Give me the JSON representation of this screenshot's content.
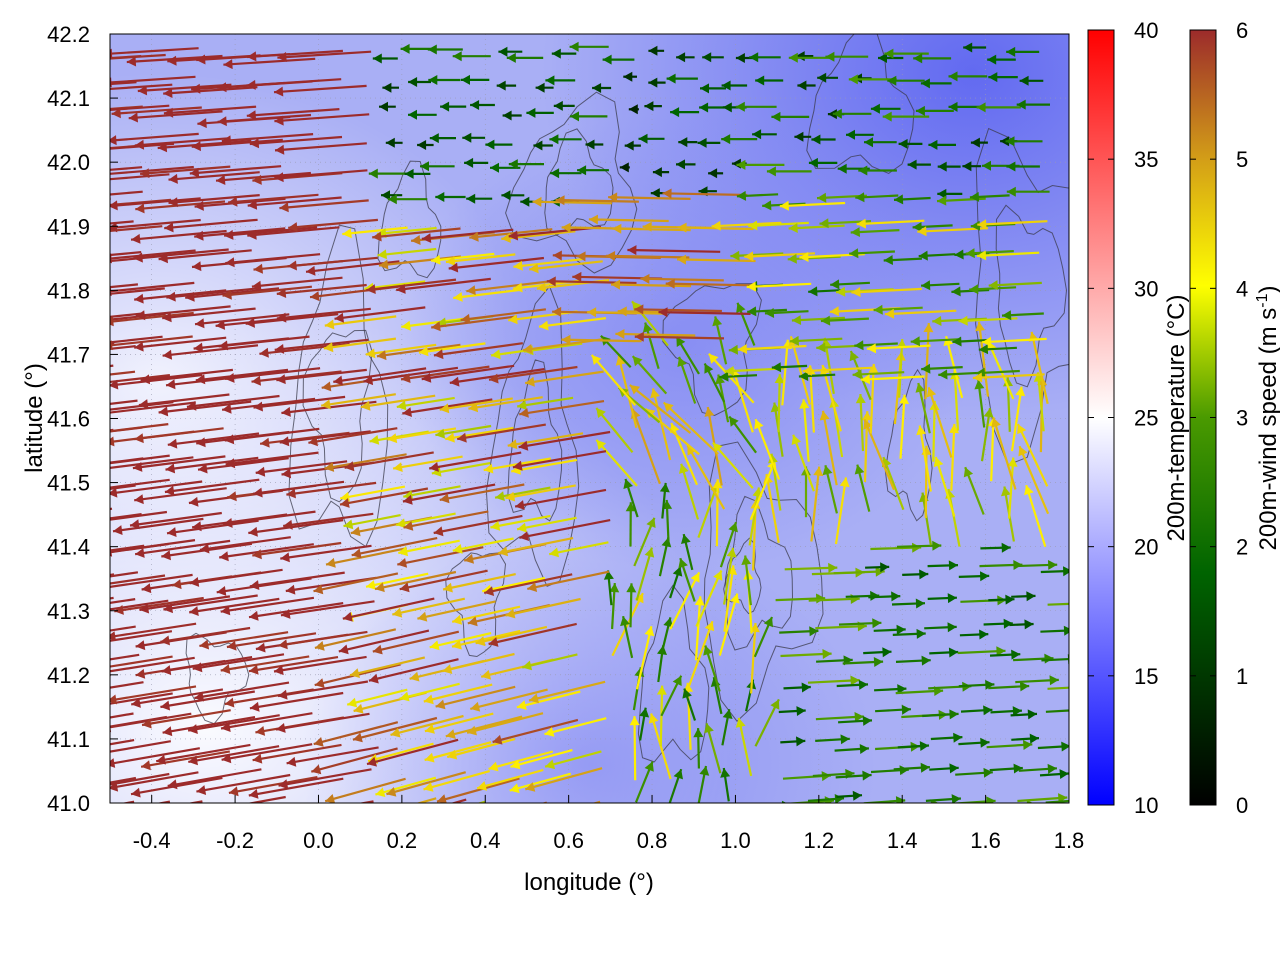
{
  "chart_data": {
    "type": "heatmap",
    "xlabel": "longitude (°)",
    "ylabel": "latitude (°)",
    "xlim": [
      -0.5,
      1.8
    ],
    "ylim": [
      41.0,
      42.2
    ],
    "xticks": [
      "-0.4",
      "-0.2",
      "0.0",
      "0.2",
      "0.4",
      "0.6",
      "0.8",
      "1.0",
      "1.2",
      "1.4",
      "1.6",
      "1.8"
    ],
    "yticks": [
      "41.0",
      "41.1",
      "41.2",
      "41.3",
      "41.4",
      "41.5",
      "41.6",
      "41.7",
      "41.8",
      "41.9",
      "42.0",
      "42.1",
      "42.2"
    ],
    "grid": true,
    "temperature": {
      "label": "200m-temperature (°C)",
      "range": [
        10,
        40
      ],
      "ticks": [
        "10",
        "15",
        "20",
        "25",
        "30",
        "35",
        "40"
      ],
      "colors": [
        "#0000ff",
        "#ffffff",
        "#ff0000"
      ],
      "field_note": "mostly 17–23 °C; warmest (≈24–25 °C) in the southwest corner and along the western edge, coolest (≈14–16 °C) in the northeast"
    },
    "wind": {
      "label_main": "200m-wind speed (m s",
      "label_sup": "-1",
      "label_tail": ")",
      "range": [
        0,
        6
      ],
      "ticks": [
        "0",
        "1",
        "2",
        "3",
        "4",
        "5",
        "6"
      ],
      "colors": [
        "#000000",
        "#006400",
        "#4a9a00",
        "#ffff00",
        "#d4a017",
        "#b03030"
      ],
      "regions": [
        {
          "area": "west (lon -0.5 to 0.7)",
          "direction": "toward west / west-northwest",
          "speed": "5–6"
        },
        {
          "area": "central north (lon 0.4 to 1.0, lat 41.9–42.2)",
          "direction": "westward",
          "speed": "1–2"
        },
        {
          "area": "east (lon 1.0 to 1.8, lat 41.0–41.4)",
          "direction": "toward east",
          "speed": "1.5–3"
        },
        {
          "area": "east (lon 1.0 to 1.8, lat 41.6–42.0)",
          "direction": "toward west",
          "speed": "1.5–4"
        },
        {
          "area": "around lon 1.2–1.5, lat 41.4–41.7",
          "direction": "northward / convergent",
          "speed": "3–5"
        }
      ]
    }
  }
}
